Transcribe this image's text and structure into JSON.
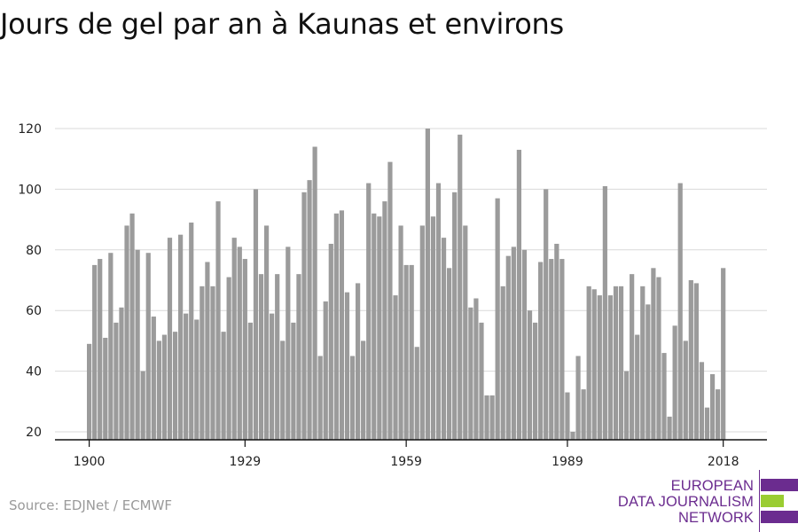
{
  "title": "Jours de gel par an à Kaunas et environs",
  "source": "Source: EDJNet / ECMWF",
  "logo": {
    "line1": "EUROPEAN",
    "line2": "DATA JOURNALISM",
    "line3": "NETWORK",
    "colors": {
      "purple": "#6b2c8f",
      "green": "#9acd32"
    }
  },
  "colors": {
    "bar": "#9b9b9b",
    "grid": "#d9d9d9",
    "axis": "#111111"
  },
  "chart_data": {
    "type": "bar",
    "title": "Jours de gel par an à Kaunas et environs",
    "xlabel": "",
    "ylabel": "",
    "x_start": 1900,
    "x_end": 2018,
    "x_ticks": [
      1900,
      1929,
      1959,
      1989,
      2018
    ],
    "y_ticks": [
      20,
      40,
      60,
      80,
      100,
      120
    ],
    "ylim": [
      20,
      120
    ],
    "grid": true,
    "legend": "none",
    "values": [
      49,
      75,
      77,
      51,
      79,
      56,
      61,
      88,
      92,
      80,
      40,
      79,
      58,
      50,
      52,
      84,
      53,
      85,
      59,
      89,
      57,
      68,
      76,
      68,
      96,
      53,
      71,
      84,
      81,
      77,
      56,
      100,
      72,
      88,
      59,
      72,
      50,
      81,
      56,
      72,
      99,
      103,
      114,
      45,
      63,
      82,
      92,
      93,
      66,
      45,
      69,
      50,
      102,
      92,
      91,
      96,
      109,
      65,
      88,
      75,
      75,
      48,
      88,
      120,
      91,
      102,
      84,
      74,
      99,
      118,
      88,
      61,
      64,
      56,
      32,
      32,
      97,
      68,
      78,
      81,
      113,
      80,
      60,
      56,
      76,
      100,
      77,
      82,
      77,
      33,
      20,
      45,
      34,
      68,
      67,
      65,
      101,
      65,
      68,
      68,
      40,
      72,
      52,
      68,
      62,
      74,
      71,
      46,
      25,
      55,
      102,
      50,
      70,
      69,
      43,
      28,
      39,
      34,
      74
    ]
  }
}
